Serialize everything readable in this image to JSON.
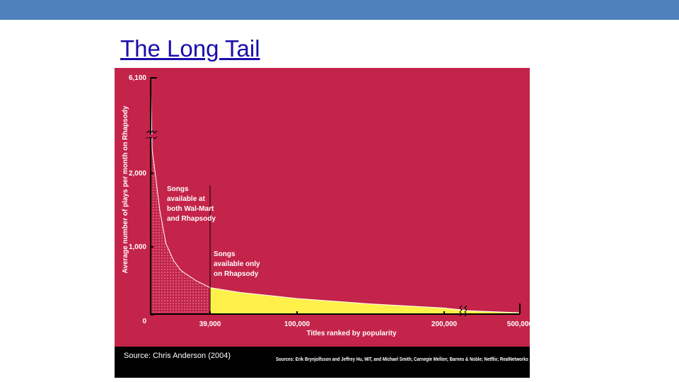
{
  "title": "The Long Tail",
  "chart_data": {
    "type": "area",
    "ylabel": "Average number of plays per month on Rhapsody",
    "xlabel": "Titles ranked by popularity",
    "x": [
      0,
      1000,
      3000,
      6000,
      10000,
      15000,
      20000,
      30000,
      39000,
      60000,
      100000,
      150000,
      200000,
      300000,
      500000
    ],
    "values": [
      6100,
      3000,
      2000,
      1500,
      1050,
      800,
      650,
      500,
      400,
      330,
      240,
      160,
      100,
      60,
      30
    ],
    "xlim": [
      0,
      500000
    ],
    "ylim": [
      0,
      6100
    ],
    "xticks": [
      0,
      {
        "value": 39000,
        "label": "39,000"
      },
      {
        "value": 100000,
        "label": "100,000"
      },
      {
        "value": 200000,
        "label": "200,000"
      },
      {
        "value": 500000,
        "label": "500,000"
      }
    ],
    "yticks": [
      0,
      {
        "value": 1000,
        "label": "1,000"
      },
      {
        "value": 2000,
        "label": "2,000"
      },
      {
        "value": 6100,
        "label": "6,100"
      }
    ],
    "colors": {
      "background": "#c4244a",
      "tail": "#fff04a",
      "head": "#c4244a"
    },
    "annotations": [
      {
        "lines": [
          "Songs",
          "available at",
          "both Wal-Mart",
          "and Rhapsody"
        ]
      },
      {
        "lines": [
          "Songs",
          "available only",
          "on Rhapsody"
        ]
      }
    ],
    "source": "Source: Chris Anderson (2004)",
    "credits": "Sources: Erik Brynjolfsson and Jeffrey Hu, MIT, and Michael Smith, Carnegie Mellon; Barnes & Noble; Netflix; RealNetworks"
  }
}
